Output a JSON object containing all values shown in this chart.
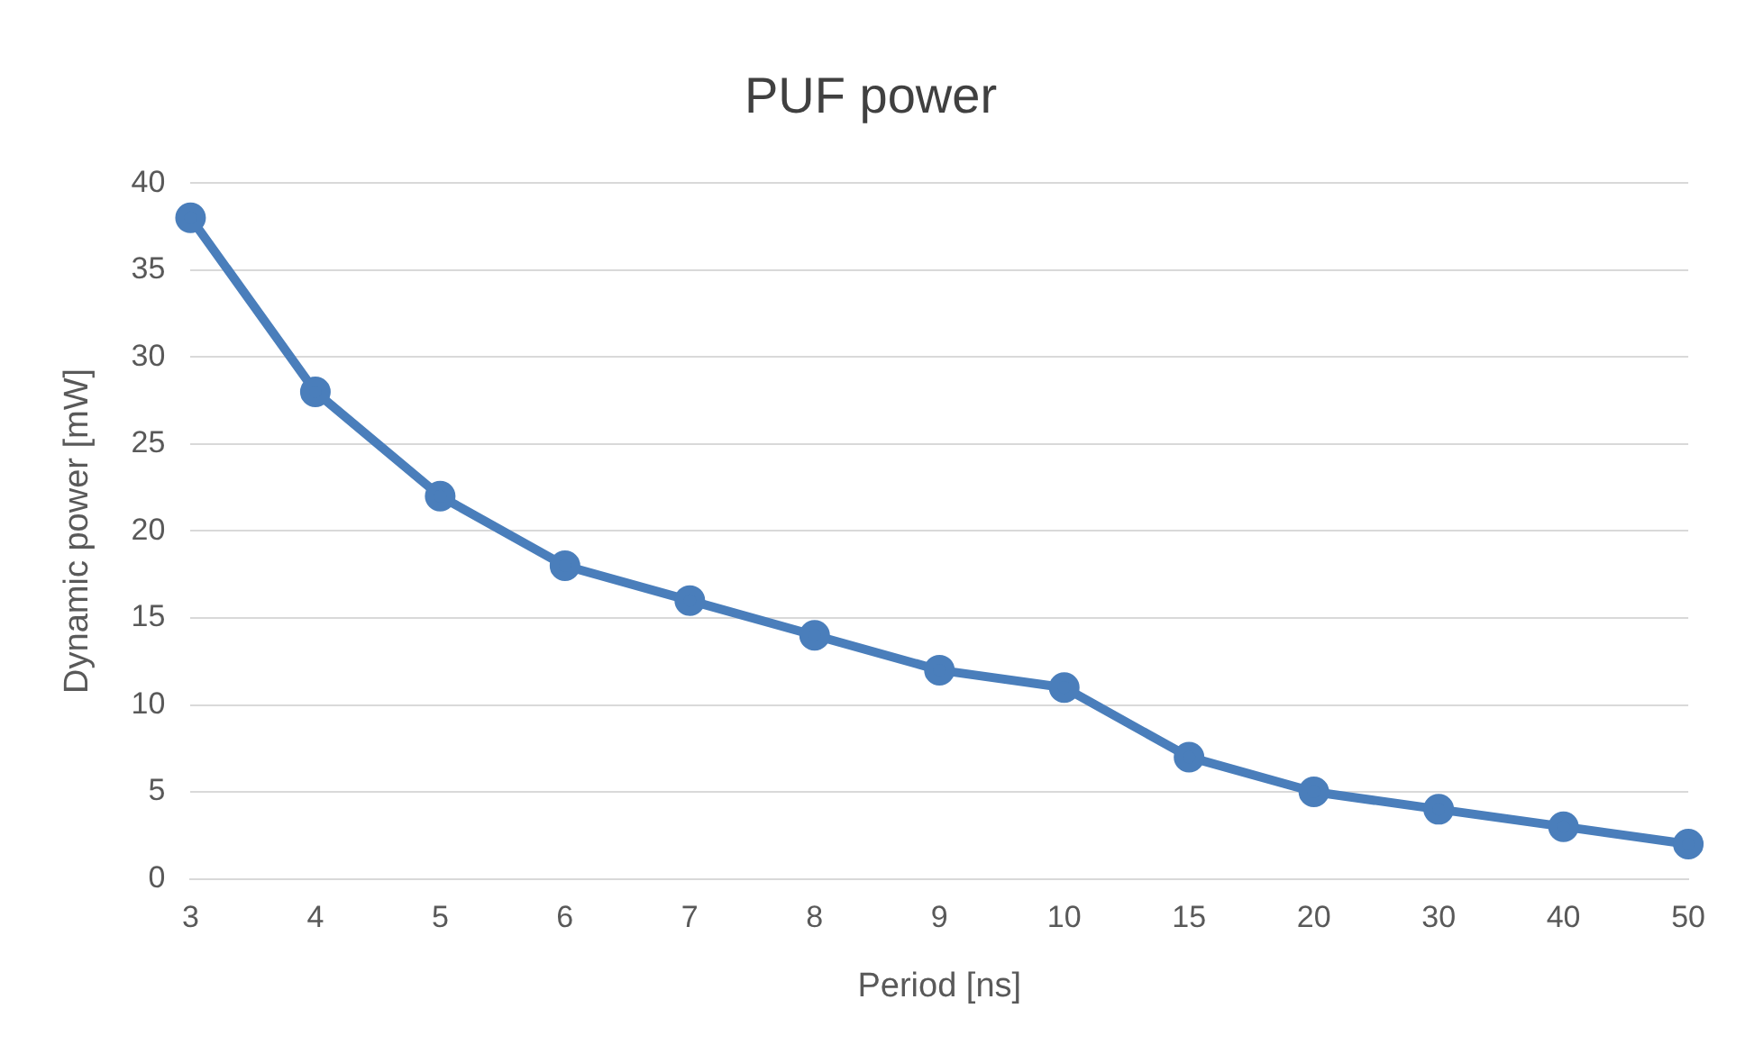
{
  "chart_data": {
    "type": "line",
    "title": "PUF power",
    "xlabel": "Period [ns]",
    "ylabel": "Dynamic power [mW]",
    "categories": [
      "3",
      "4",
      "5",
      "6",
      "7",
      "8",
      "9",
      "10",
      "15",
      "20",
      "30",
      "40",
      "50"
    ],
    "series": [
      {
        "color": "#4a7ebb",
        "values": [
          38,
          28,
          22,
          18,
          16,
          14,
          12,
          11,
          7,
          5,
          4,
          3,
          2
        ]
      }
    ],
    "ylim": [
      0,
      40
    ],
    "yticks": [
      0,
      5,
      10,
      15,
      20,
      25,
      30,
      35,
      40
    ],
    "grid": "y",
    "legend": false,
    "marker": "circle",
    "line_style": "solid"
  }
}
